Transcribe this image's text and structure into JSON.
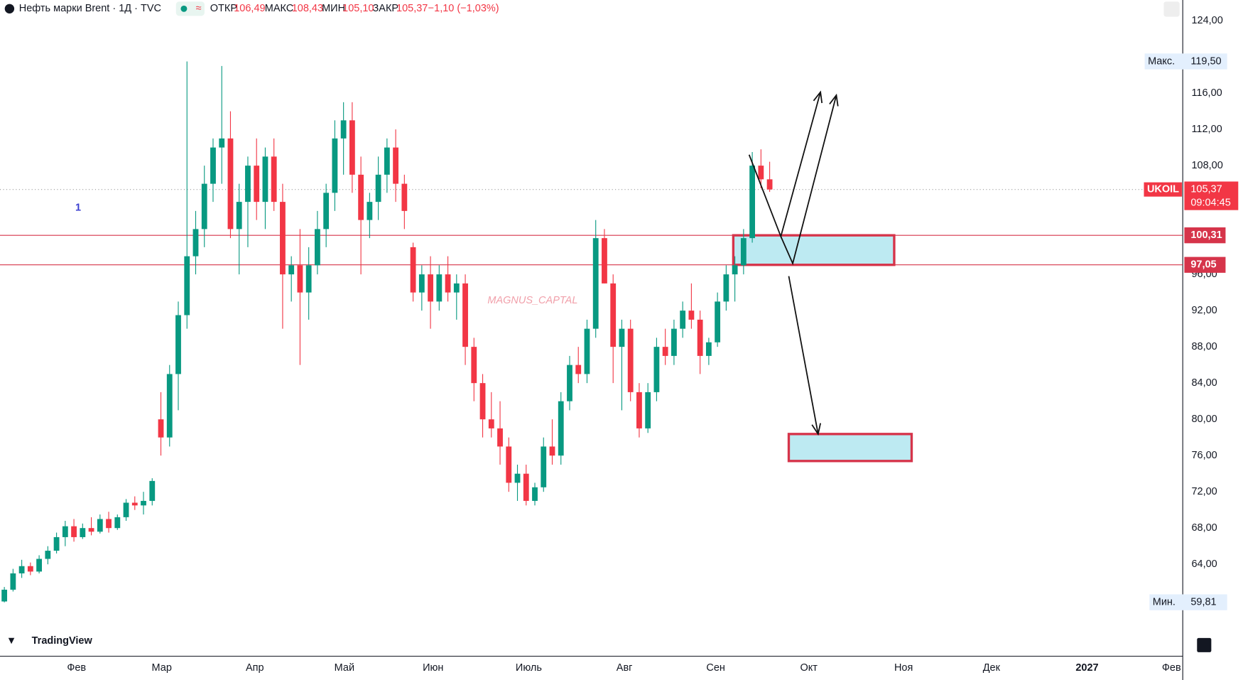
{
  "header": {
    "symbol": "Нефть марки Brent · 1Д · TVC",
    "open_label": "ОТКР",
    "open": "106,49",
    "high_label": "МАКС",
    "high": "108,43",
    "low_label": "МИН",
    "low": "105,10",
    "close_label": "ЗАКР",
    "close": "105,37",
    "change": "−1,10 (−1,03%)"
  },
  "chart_data": {
    "type": "candlestick",
    "annotation": "1",
    "watermark": "MAGNUS_CAPTAL",
    "brand": "TradingView",
    "up_color": "#089981",
    "down_color": "#f23645",
    "xlim": [
      0,
      136
    ],
    "ylim": [
      53.86,
      126.28
    ],
    "xticks": [
      {
        "value": 8.8,
        "label": "Фев"
      },
      {
        "value": 18.6,
        "label": "Мар"
      },
      {
        "value": 29.3,
        "label": "Апр"
      },
      {
        "value": 39.6,
        "label": "Май"
      },
      {
        "value": 49.8,
        "label": "Июн"
      },
      {
        "value": 60.8,
        "label": "Июль"
      },
      {
        "value": 71.8,
        "label": "Авг"
      },
      {
        "value": 82.3,
        "label": "Сен"
      },
      {
        "value": 93,
        "label": "Окт"
      },
      {
        "value": 103.9,
        "label": "Ноя"
      },
      {
        "value": 114,
        "label": "Дек"
      },
      {
        "value": 125,
        "label": "2027"
      },
      {
        "value": 134.7,
        "label": "Фев"
      }
    ],
    "yticks": [
      {
        "value": 64,
        "label": "64,00"
      },
      {
        "value": 68,
        "label": "68,00"
      },
      {
        "value": 72,
        "label": "72,00"
      },
      {
        "value": 76,
        "label": "76,00"
      },
      {
        "value": 80,
        "label": "80,00"
      },
      {
        "value": 84,
        "label": "84,00"
      },
      {
        "value": 88,
        "label": "88,00"
      },
      {
        "value": 92,
        "label": "92,00"
      },
      {
        "value": 96,
        "label": "96,00"
      },
      {
        "value": 108,
        "label": "108,00"
      },
      {
        "value": 112,
        "label": "112,00"
      },
      {
        "value": 116,
        "label": "116,00"
      },
      {
        "value": 124,
        "label": "124,00"
      }
    ],
    "max": {
      "name": "Макс.",
      "value": 119.5,
      "label": "119,50"
    },
    "min": {
      "name": "Мин.",
      "value": 59.81,
      "label": "59,81"
    },
    "last": {
      "name": "UKOIL",
      "value": 105.37,
      "label": "105,37",
      "timer": "09:04:45"
    },
    "levels": [
      {
        "value": 100.31,
        "label": "100,31"
      },
      {
        "value": 97.05,
        "label": "97,05"
      }
    ],
    "candles": [
      [
        59.9,
        61.5,
        59.8,
        61.2
      ],
      [
        61.2,
        63.5,
        61,
        63
      ],
      [
        63,
        64.5,
        62.5,
        63.8
      ],
      [
        63.8,
        64.2,
        62.8,
        63.2
      ],
      [
        63.2,
        65,
        63,
        64.6
      ],
      [
        64.6,
        66,
        64,
        65.5
      ],
      [
        65.5,
        67.5,
        65.2,
        67
      ],
      [
        67,
        68.8,
        66,
        68.2
      ],
      [
        68.2,
        69,
        66.5,
        67
      ],
      [
        67,
        68.5,
        66.8,
        68
      ],
      [
        68,
        69.2,
        67.2,
        67.6
      ],
      [
        67.6,
        69.5,
        67.4,
        69
      ],
      [
        69,
        69.8,
        67.5,
        68
      ],
      [
        68,
        69.5,
        67.8,
        69.2
      ],
      [
        69.2,
        71.2,
        68.8,
        70.8
      ],
      [
        70.8,
        71.5,
        70,
        70.5
      ],
      [
        70.5,
        72,
        69.5,
        71
      ],
      [
        71,
        73.5,
        70.5,
        73.2
      ],
      [
        80,
        83,
        76,
        78
      ],
      [
        78,
        86,
        77,
        85
      ],
      [
        85,
        93,
        81,
        91.5
      ],
      [
        91.5,
        119.5,
        90,
        98
      ],
      [
        98,
        103,
        96,
        101
      ],
      [
        101,
        108,
        99,
        106
      ],
      [
        106,
        111,
        104,
        110
      ],
      [
        110,
        119,
        106,
        111
      ],
      [
        111,
        114,
        100,
        101
      ],
      [
        101,
        106,
        96,
        104
      ],
      [
        104,
        109,
        99,
        108
      ],
      [
        108,
        111,
        102,
        104
      ],
      [
        104,
        110,
        101,
        109
      ],
      [
        109,
        111,
        103,
        104
      ],
      [
        104,
        106,
        90,
        96
      ],
      [
        96,
        98,
        93,
        97
      ],
      [
        97,
        101,
        86,
        94
      ],
      [
        94,
        99,
        91,
        97
      ],
      [
        97,
        103,
        96,
        101
      ],
      [
        101,
        106,
        99,
        105
      ],
      [
        105,
        113,
        103,
        111
      ],
      [
        111,
        115,
        107,
        113
      ],
      [
        113,
        115,
        105,
        107
      ],
      [
        107,
        109,
        96,
        102
      ],
      [
        102,
        105,
        100,
        104
      ],
      [
        104,
        109,
        102,
        107
      ],
      [
        107,
        111,
        105,
        110
      ],
      [
        110,
        112,
        104,
        106
      ],
      [
        106,
        107,
        101,
        103
      ],
      [
        99,
        99.5,
        93,
        94
      ],
      [
        94,
        97,
        92,
        96
      ],
      [
        96,
        98,
        90,
        93
      ],
      [
        93,
        97,
        92,
        96
      ],
      [
        96,
        98,
        93,
        94
      ],
      [
        94,
        96,
        91,
        95
      ],
      [
        95,
        96,
        86,
        88
      ],
      [
        88,
        89,
        82,
        84
      ],
      [
        84,
        85,
        78,
        80
      ],
      [
        80,
        83,
        78,
        79
      ],
      [
        79,
        82,
        75,
        77
      ],
      [
        77,
        78,
        72,
        73
      ],
      [
        73,
        75,
        71,
        74
      ],
      [
        74,
        75,
        70.5,
        71
      ],
      [
        71,
        73,
        70.5,
        72.5
      ],
      [
        72.5,
        78,
        72,
        77
      ],
      [
        77,
        80,
        75,
        76
      ],
      [
        76,
        83,
        75,
        82
      ],
      [
        82,
        87,
        81,
        86
      ],
      [
        86,
        88,
        84,
        85
      ],
      [
        85,
        91,
        84,
        90
      ],
      [
        90,
        102,
        89,
        100
      ],
      [
        100,
        101,
        95,
        95
      ],
      [
        95,
        96,
        84,
        88
      ],
      [
        88,
        91,
        81,
        90
      ],
      [
        90,
        91,
        82,
        83
      ],
      [
        83,
        84,
        78,
        79
      ],
      [
        79,
        84,
        78.5,
        83
      ],
      [
        83,
        89,
        82,
        88
      ],
      [
        88,
        90,
        86,
        87
      ],
      [
        87,
        91,
        86,
        90
      ],
      [
        90,
        93,
        89,
        92
      ],
      [
        92,
        95,
        90,
        91
      ],
      [
        91,
        92,
        85,
        87
      ],
      [
        87,
        89,
        86,
        88.5
      ],
      [
        88.5,
        94,
        88,
        93
      ],
      [
        93,
        97,
        92,
        96
      ],
      [
        96,
        98,
        93,
        97
      ],
      [
        97,
        101,
        96,
        100
      ],
      [
        100,
        109.5,
        99.5,
        108
      ],
      [
        108,
        109.8,
        105.5,
        106.49
      ],
      [
        106.49,
        108.43,
        105.1,
        105.37
      ]
    ]
  }
}
